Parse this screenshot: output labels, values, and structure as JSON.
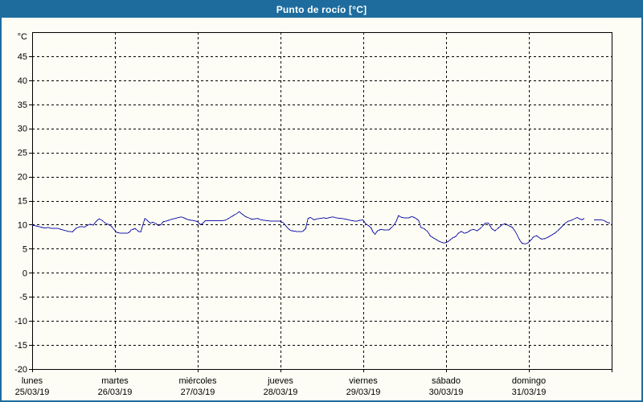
{
  "window": {
    "title": "Punto de rocío [°C]"
  },
  "colors": {
    "titlebar_bg": "#1e6c9e",
    "window_border": "#1e6c9e",
    "panel_bg": "#fdfdf5",
    "frame": "#000000",
    "grid": "#000000",
    "text": "#000000",
    "series_line": "#1a1aaa"
  },
  "chart_data": {
    "type": "line",
    "title": "Punto de rocío [°C]",
    "unit_label": "°C",
    "grid": "dashed",
    "legend": "none",
    "y_axis": {
      "min": -20,
      "max": 50,
      "tick_step": 5,
      "tick_labels": [
        45,
        40,
        35,
        30,
        25,
        20,
        15,
        10,
        5,
        0,
        -5,
        -10,
        -15,
        -20
      ]
    },
    "x_axis": {
      "unit": "hours_from_monday_00h",
      "min": 0,
      "max": 168,
      "day_tick_hours": [
        0,
        24,
        48,
        72,
        96,
        120,
        144,
        168
      ],
      "day_labels": [
        {
          "name": "lunes",
          "date": "25/03/19"
        },
        {
          "name": "martes",
          "date": "26/03/19"
        },
        {
          "name": "miércoles",
          "date": "27/03/19"
        },
        {
          "name": "jueves",
          "date": "28/03/19"
        },
        {
          "name": "viernes",
          "date": "29/03/19"
        },
        {
          "name": "sábado",
          "date": "30/03/19"
        },
        {
          "name": "domingo",
          "date": "31/03/19"
        }
      ]
    },
    "series": [
      {
        "name": "Punto de rocío",
        "color": "#1a1aaa",
        "segments": [
          [
            [
              0,
              9.9
            ],
            [
              1.9,
              9.6
            ],
            [
              3.5,
              9.3
            ],
            [
              4.7,
              9.4
            ],
            [
              5.8,
              9.2
            ],
            [
              7.5,
              9.2
            ],
            [
              8.9,
              8.9
            ],
            [
              10.5,
              8.6
            ],
            [
              11.7,
              8.5
            ],
            [
              12.8,
              9.3
            ],
            [
              14,
              9.6
            ],
            [
              15.2,
              9.5
            ],
            [
              15.9,
              9.8
            ],
            [
              16.8,
              10.1
            ],
            [
              17.7,
              9.9
            ],
            [
              18.7,
              10.8
            ],
            [
              19.4,
              11.2
            ],
            [
              20.3,
              10.9
            ],
            [
              21.2,
              10.3
            ],
            [
              22.2,
              10
            ],
            [
              22.9,
              9.7
            ],
            [
              24.5,
              8.4
            ],
            [
              25.7,
              8.2
            ],
            [
              26.8,
              8.2
            ],
            [
              28,
              8.3
            ],
            [
              28.7,
              8.9
            ],
            [
              29.9,
              9.2
            ],
            [
              30.8,
              8.6
            ],
            [
              31.5,
              8.5
            ],
            [
              32.2,
              10.2
            ],
            [
              32.7,
              11.3
            ],
            [
              33.6,
              10.7
            ],
            [
              34.3,
              10.3
            ],
            [
              35,
              10.5
            ],
            [
              35.9,
              10.2
            ],
            [
              36.6,
              9.8
            ],
            [
              37.3,
              10
            ],
            [
              38,
              10.6
            ],
            [
              39.2,
              10.8
            ],
            [
              40.4,
              11.1
            ],
            [
              41.5,
              11.3
            ],
            [
              42.5,
              11.5
            ],
            [
              43.4,
              11.6
            ],
            [
              44.3,
              11.3
            ],
            [
              45.3,
              11
            ],
            [
              46.2,
              10.9
            ],
            [
              47.1,
              10.8
            ],
            [
              48,
              10.6
            ],
            [
              48.8,
              10
            ],
            [
              49.5,
              10.3
            ],
            [
              50.2,
              10.8
            ],
            [
              51.3,
              10.8
            ],
            [
              52.5,
              10.8
            ],
            [
              53.7,
              10.8
            ],
            [
              54.8,
              10.8
            ],
            [
              56,
              10.9
            ],
            [
              57.2,
              11.4
            ],
            [
              58.3,
              11.9
            ],
            [
              59.3,
              12.3
            ],
            [
              60,
              12.7
            ],
            [
              60.9,
              12.2
            ],
            [
              61.8,
              11.7
            ],
            [
              62.8,
              11.4
            ],
            [
              63.7,
              11.1
            ],
            [
              64.6,
              11.2
            ],
            [
              65.3,
              11.3
            ],
            [
              66.3,
              11
            ],
            [
              67.2,
              10.9
            ],
            [
              68.4,
              10.8
            ],
            [
              69.5,
              10.7
            ],
            [
              70.7,
              10.7
            ],
            [
              71.9,
              10.7
            ],
            [
              72.8,
              10.4
            ],
            [
              73.5,
              9.8
            ],
            [
              74.2,
              9.2
            ],
            [
              74.9,
              8.8
            ],
            [
              75.6,
              8.7
            ],
            [
              76.5,
              8.6
            ],
            [
              77.5,
              8.6
            ],
            [
              78.4,
              8.6
            ],
            [
              79.3,
              9.2
            ],
            [
              80,
              11.3
            ],
            [
              80.7,
              11.5
            ],
            [
              81.7,
              11
            ],
            [
              82.6,
              11.2
            ],
            [
              83.5,
              11.3
            ],
            [
              84.5,
              11.4
            ],
            [
              85.4,
              11.3
            ],
            [
              86.3,
              11.5
            ],
            [
              87.3,
              11.6
            ],
            [
              88.2,
              11.4
            ],
            [
              89.4,
              11.3
            ],
            [
              90.5,
              11.2
            ],
            [
              91.7,
              11
            ],
            [
              92.9,
              10.8
            ],
            [
              94,
              10.7
            ],
            [
              95,
              10.9
            ],
            [
              95.9,
              11
            ],
            [
              96.8,
              10.1
            ],
            [
              97.5,
              9.8
            ],
            [
              98.2,
              9.4
            ],
            [
              98.9,
              8.4
            ],
            [
              99.4,
              8
            ],
            [
              100.1,
              8.7
            ],
            [
              101,
              9
            ],
            [
              102.2,
              8.9
            ],
            [
              103.4,
              8.9
            ],
            [
              104.5,
              9.6
            ],
            [
              105.5,
              10.6
            ],
            [
              106.2,
              11.9
            ],
            [
              107.1,
              11.5
            ],
            [
              108,
              11.4
            ],
            [
              109.2,
              11.4
            ],
            [
              110.1,
              11.7
            ],
            [
              111,
              11.4
            ],
            [
              112,
              10.9
            ],
            [
              112.7,
              9.4
            ],
            [
              113.6,
              9.2
            ],
            [
              114.6,
              8.6
            ],
            [
              115.5,
              7.6
            ],
            [
              116.7,
              7.1
            ],
            [
              117.8,
              6.6
            ],
            [
              118.8,
              6.3
            ],
            [
              119.7,
              6.2
            ],
            [
              120.6,
              6.5
            ],
            [
              121.3,
              6.9
            ],
            [
              122,
              7.3
            ],
            [
              122.7,
              7.5
            ],
            [
              123.7,
              8.3
            ],
            [
              124.4,
              8.6
            ],
            [
              125.3,
              8.2
            ],
            [
              126.2,
              8.4
            ],
            [
              127.2,
              8.9
            ],
            [
              128.1,
              9
            ],
            [
              129,
              8.7
            ],
            [
              130.2,
              9.4
            ],
            [
              131.4,
              10.3
            ],
            [
              132.3,
              10.3
            ],
            [
              133.2,
              9.2
            ],
            [
              134.2,
              8.7
            ],
            [
              135.1,
              9.3
            ],
            [
              136.3,
              10
            ],
            [
              137.2,
              10.2
            ],
            [
              138.1,
              9.8
            ],
            [
              139.3,
              9.4
            ],
            [
              140.2,
              8.4
            ],
            [
              141.2,
              7
            ],
            [
              141.9,
              6.2
            ],
            [
              142.8,
              6
            ],
            [
              143.7,
              6.2
            ],
            [
              144.7,
              6.9
            ],
            [
              145.4,
              7.5
            ],
            [
              146.3,
              7.7
            ],
            [
              147,
              7.3
            ],
            [
              147.7,
              7
            ],
            [
              148.6,
              7.1
            ],
            [
              149.6,
              7.4
            ],
            [
              150.5,
              7.8
            ],
            [
              151.7,
              8.3
            ],
            [
              152.6,
              8.9
            ],
            [
              153.5,
              9.5
            ],
            [
              154.5,
              10.3
            ],
            [
              155.4,
              10.7
            ],
            [
              156.3,
              10.9
            ],
            [
              157.2,
              11.2
            ],
            [
              158,
              11.5
            ],
            [
              158.7,
              11.2
            ],
            [
              159.4,
              11
            ],
            [
              160.1,
              11.3
            ]
          ],
          [
            [
              162.9,
              11
            ],
            [
              163.8,
              11
            ],
            [
              164.7,
              11
            ],
            [
              165.7,
              10.9
            ],
            [
              166.6,
              10.5
            ],
            [
              167.5,
              10.3
            ]
          ]
        ]
      }
    ]
  }
}
